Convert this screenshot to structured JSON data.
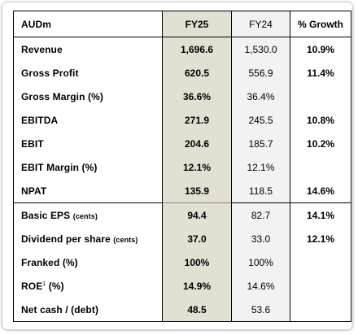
{
  "table": {
    "header": {
      "label": "AUDm",
      "current": "FY25",
      "previous": "FY24",
      "growth": "% Growth"
    },
    "rows": [
      {
        "label": "Revenue",
        "note": "",
        "sup": "",
        "suffix": "",
        "current": "1,696.6",
        "previous": "1,530.0",
        "growth": "10.9%"
      },
      {
        "label": "Gross Profit",
        "note": "",
        "sup": "",
        "suffix": "",
        "current": "620.5",
        "previous": "556.9",
        "growth": "11.4%"
      },
      {
        "label": "Gross Margin (%)",
        "note": "",
        "sup": "",
        "suffix": "",
        "current": "36.6%",
        "previous": "36.4%",
        "growth": ""
      },
      {
        "label": "EBITDA",
        "note": "",
        "sup": "",
        "suffix": "",
        "current": "271.9",
        "previous": "245.5",
        "growth": "10.8%"
      },
      {
        "label": "EBIT",
        "note": "",
        "sup": "",
        "suffix": "",
        "current": "204.6",
        "previous": "185.7",
        "growth": "10.2%"
      },
      {
        "label": "EBIT Margin (%)",
        "note": "",
        "sup": "",
        "suffix": "",
        "current": "12.1%",
        "previous": "12.1%",
        "growth": ""
      },
      {
        "label": "NPAT",
        "note": "",
        "sup": "",
        "suffix": "",
        "current": "135.9",
        "previous": "118.5",
        "growth": "14.6%"
      },
      {
        "label": "Basic EPS",
        "note": "(cents)",
        "sup": "",
        "suffix": "",
        "current": "94.4",
        "previous": "82.7",
        "growth": "14.1%"
      },
      {
        "label": "Dividend per share",
        "note": "(cents)",
        "sup": "",
        "suffix": "",
        "current": "37.0",
        "previous": "33.0",
        "growth": "12.1%"
      },
      {
        "label": "Franked (%)",
        "note": "",
        "sup": "",
        "suffix": "",
        "current": "100%",
        "previous": "100%",
        "growth": ""
      },
      {
        "label": "ROE",
        "note": "",
        "sup": "1",
        "suffix": "(%)",
        "current": "14.9%",
        "previous": "14.6%",
        "growth": ""
      },
      {
        "label": "Net cash / (debt)",
        "note": "",
        "sup": "",
        "suffix": "",
        "current": "48.5",
        "previous": "53.6",
        "growth": ""
      }
    ]
  },
  "colors": {
    "current_column_bg": "#e2dfd3",
    "previous_column_bg": "#f2f2f2",
    "border": "#000000"
  }
}
